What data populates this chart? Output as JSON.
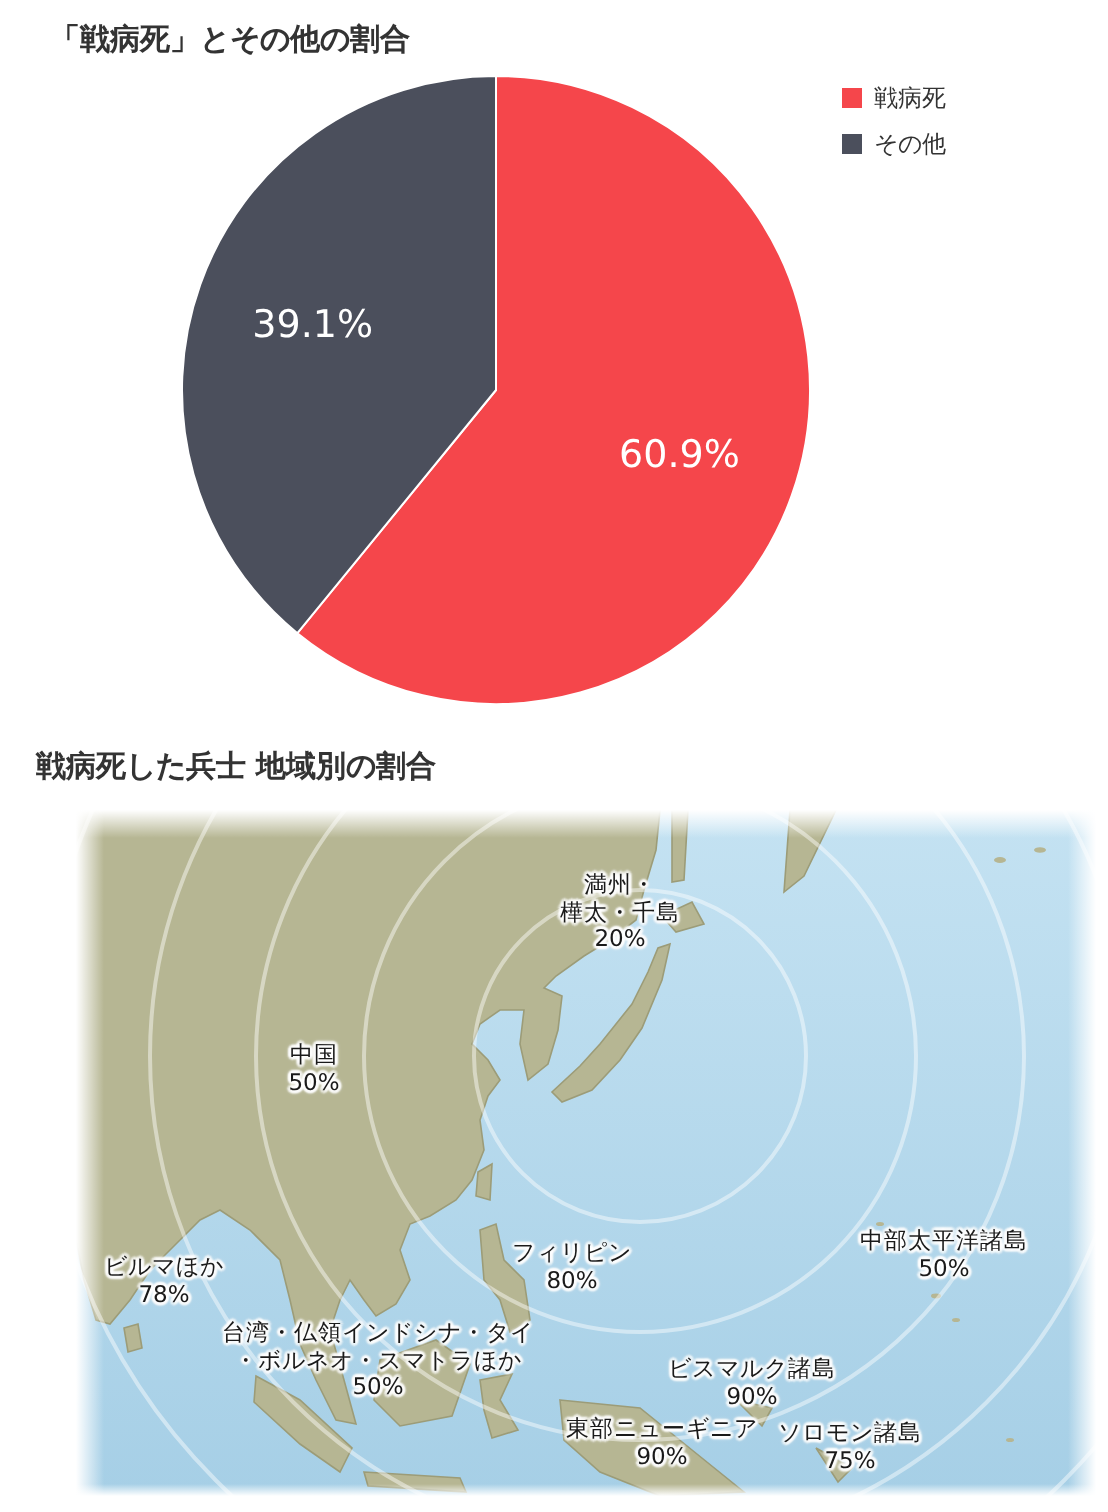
{
  "chart_data": [
    {
      "type": "pie",
      "title": "「戦病死」とその他の割合",
      "categories": [
        "戦病死",
        "その他"
      ],
      "values": [
        60.9,
        39.1
      ],
      "colors": [
        "#f5464b",
        "#4b4f5c"
      ],
      "value_labels": [
        "60.9%",
        "39.1%"
      ],
      "legend": "top right"
    },
    {
      "type": "other",
      "title": "戦病死した兵士 地域別の割合",
      "categories": [
        "満州・樺太・千島",
        "中国",
        "中部太平洋諸島",
        "ビルマほか",
        "フィリピン",
        "台湾・仏領インドシナ・タイ・ボルネオ・スマトラほか",
        "ビスマルク諸島",
        "東部ニューギニア",
        "ソロモン諸島"
      ],
      "values": [
        20,
        50,
        50,
        78,
        80,
        50,
        90,
        90,
        75
      ],
      "value_labels": [
        "20%",
        "50%",
        "50%",
        "78%",
        "80%",
        "50%",
        "90%",
        "90%",
        "75%"
      ]
    }
  ]
}
